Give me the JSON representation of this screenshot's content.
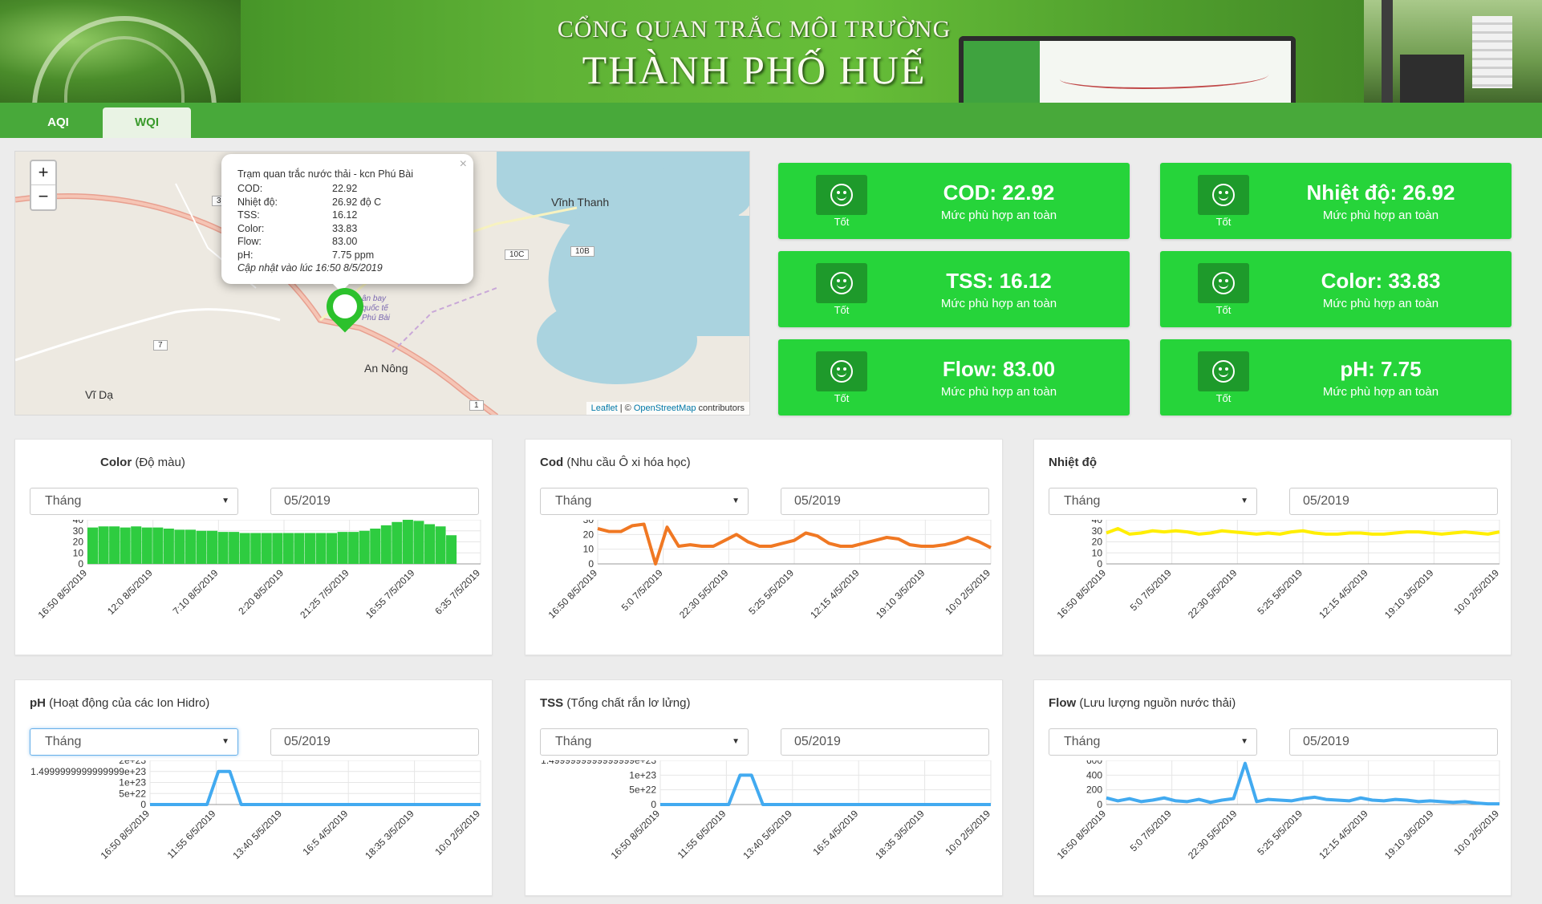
{
  "banner": {
    "title_top": "CỔNG QUAN TRẮC MÔI TRƯỜNG",
    "title_main": "THÀNH PHỐ HUẾ"
  },
  "tabs": [
    {
      "label": "AQI",
      "active": false
    },
    {
      "label": "WQI",
      "active": true
    }
  ],
  "map": {
    "zoom_in": "+",
    "zoom_out": "−",
    "labels": {
      "vinh_thanh": "Vĩnh Thanh",
      "an_nong": "An Nông",
      "vi_da": "Vĩ Dạ",
      "airport": "ân bay quốc tế Phú Bài"
    },
    "road_shields": {
      "r10c": "10C",
      "r10b": "10B",
      "r7": "7",
      "r3": "3",
      "r1": "1"
    },
    "popup": {
      "title": "Trạm quan trắc nước thải - kcn Phú Bài",
      "rows": [
        {
          "k": "COD:",
          "v": "22.92"
        },
        {
          "k": "Nhiệt độ:",
          "v": "26.92 độ C"
        },
        {
          "k": "TSS:",
          "v": "16.12"
        },
        {
          "k": "Color:",
          "v": "33.83"
        },
        {
          "k": "Flow:",
          "v": "83.00"
        },
        {
          "k": "pH:",
          "v": "7.75 ppm"
        }
      ],
      "updated": "Cập nhật vào lúc 16:50 8/5/2019",
      "close": "×"
    },
    "attribution": {
      "leaflet": "Leaflet",
      "sep": " | © ",
      "osm": "OpenStreetMap",
      "contrib": " contributors"
    }
  },
  "cards": [
    {
      "value": "COD: 22.92",
      "desc": "Mức phù hợp an toàn",
      "level": "Tốt"
    },
    {
      "value": "Nhiệt độ: 26.92",
      "desc": "Mức phù hợp an toàn",
      "level": "Tốt"
    },
    {
      "value": "TSS: 16.12",
      "desc": "Mức phù hợp an toàn",
      "level": "Tốt"
    },
    {
      "value": "Color: 33.83",
      "desc": "Mức phù hợp an toàn",
      "level": "Tốt"
    },
    {
      "value": "Flow: 83.00",
      "desc": "Mức phù hợp an toàn",
      "level": "Tốt"
    },
    {
      "value": "pH: 7.75",
      "desc": "Mức phù hợp an toàn",
      "level": "Tốt"
    }
  ],
  "colors": {
    "card_green": "#26d43a",
    "tab_green": "#48a93a",
    "color_chart": "#2ecc40",
    "cod_chart": "#f07823",
    "temp_chart": "#ffee00",
    "blue_chart": "#42aaf0"
  },
  "panels": [
    {
      "title_bold": "Color",
      "title_rest": " (Độ màu)",
      "select": "Tháng",
      "date": "05/2019"
    },
    {
      "title_bold": "Cod",
      "title_rest": " (Nhu cầu Ô xi hóa học)",
      "select": "Tháng",
      "date": "05/2019"
    },
    {
      "title_bold": "Nhiệt độ",
      "title_rest": "",
      "select": "Tháng",
      "date": "05/2019"
    },
    {
      "title_bold": "pH",
      "title_rest": " (Hoạt động của các Ion Hidro)",
      "select": "Tháng",
      "date": "05/2019"
    },
    {
      "title_bold": "TSS",
      "title_rest": " (Tổng chất rắn lơ lửng)",
      "select": "Tháng",
      "date": "05/2019"
    },
    {
      "title_bold": "Flow",
      "title_rest": " (Lưu lượng nguồn nước thải)",
      "select": "Tháng",
      "date": "05/2019"
    }
  ],
  "chart_data": [
    {
      "type": "bar",
      "name": "color",
      "color": "#2ecc40",
      "ylim": [
        0,
        40
      ],
      "yticks": [
        "0",
        "10",
        "20",
        "30",
        "40"
      ],
      "xticks": [
        "16:50 8/5/2019",
        "12:0 8/5/2019",
        "7:10 8/5/2019",
        "2:20 8/5/2019",
        "21:25 7/5/2019",
        "16:55 7/5/2019",
        "6:35 7/5/2019"
      ],
      "values": [
        33,
        34,
        34,
        33,
        34,
        33,
        33,
        32,
        31,
        31,
        30,
        30,
        29,
        29,
        28,
        28,
        28,
        28,
        28,
        28,
        28,
        28,
        28,
        29,
        29,
        30,
        32,
        35,
        38,
        40,
        39,
        36,
        34,
        26
      ]
    },
    {
      "type": "line",
      "name": "cod",
      "color": "#f07823",
      "ylim": [
        0,
        30
      ],
      "yticks": [
        "0",
        "10",
        "20",
        "30"
      ],
      "xticks": [
        "16:50 8/5/2019",
        "5:0 7/5/2019",
        "22:30 5/5/2019",
        "5:25 5/5/2019",
        "12:15 4/5/2019",
        "19:10 3/5/2019",
        "10:0 2/5/2019"
      ],
      "values": [
        24,
        22,
        22,
        26,
        27,
        0,
        25,
        12,
        13,
        12,
        12,
        16,
        20,
        15,
        12,
        12,
        14,
        16,
        21,
        19,
        14,
        12,
        12,
        14,
        16,
        18,
        17,
        13,
        12,
        12,
        13,
        15,
        18,
        15,
        11
      ]
    },
    {
      "type": "line",
      "name": "nhiet_do",
      "color": "#ffee00",
      "ylim": [
        0,
        40
      ],
      "yticks": [
        "0",
        "10",
        "20",
        "30",
        "40"
      ],
      "xticks": [
        "16:50 8/5/2019",
        "5:0 7/5/2019",
        "22:30 5/5/2019",
        "5:25 5/5/2019",
        "12:15 4/5/2019",
        "19:10 3/5/2019",
        "10:0 2/5/2019"
      ],
      "values": [
        28,
        32,
        27,
        28,
        30,
        29,
        30,
        29,
        27,
        28,
        30,
        29,
        28,
        27,
        28,
        27,
        29,
        30,
        28,
        27,
        27,
        28,
        28,
        27,
        27,
        28,
        29,
        29,
        28,
        27,
        28,
        29,
        28,
        27,
        29
      ]
    },
    {
      "type": "line",
      "name": "ph",
      "color": "#42aaf0",
      "ylim": [
        0,
        2e+23
      ],
      "yticks": [
        "0",
        "5e+22",
        "1e+23",
        "1.4999999999999999e+23",
        "2e+23"
      ],
      "xticks": [
        "16:50 8/5/2019",
        "11:55 6/5/2019",
        "13:40 5/5/2019",
        "16:5 4/5/2019",
        "18:35 3/5/2019",
        "10:0 2/5/2019"
      ],
      "values": [
        0,
        0,
        0,
        0,
        0,
        0,
        1.5e+23,
        1.5e+23,
        0,
        0,
        0,
        0,
        0,
        0,
        0,
        0,
        0,
        0,
        0,
        0,
        0,
        0,
        0,
        0,
        0,
        0,
        0,
        0,
        0,
        0
      ]
    },
    {
      "type": "line",
      "name": "tss",
      "color": "#42aaf0",
      "ylim": [
        0,
        1.5e+23
      ],
      "yticks": [
        "0",
        "5e+22",
        "1e+23",
        "1.4999999999999999e+23"
      ],
      "xticks": [
        "16:50 8/5/2019",
        "11:55 6/5/2019",
        "13:40 5/5/2019",
        "16:5 4/5/2019",
        "18:35 3/5/2019",
        "10:0 2/5/2019"
      ],
      "values": [
        0,
        0,
        0,
        0,
        0,
        0,
        0,
        1e+23,
        1e+23,
        0,
        0,
        0,
        0,
        0,
        0,
        0,
        0,
        0,
        0,
        0,
        0,
        0,
        0,
        0,
        0,
        0,
        0,
        0,
        0,
        0
      ]
    },
    {
      "type": "line",
      "name": "flow",
      "color": "#42aaf0",
      "ylim": [
        0,
        600
      ],
      "yticks": [
        "0",
        "200",
        "400",
        "600"
      ],
      "xticks": [
        "16:50 8/5/2019",
        "5:0 7/5/2019",
        "22:30 5/5/2019",
        "5:25 5/5/2019",
        "12:15 4/5/2019",
        "19:10 3/5/2019",
        "10:0 2/5/2019"
      ],
      "values": [
        90,
        50,
        80,
        40,
        60,
        90,
        50,
        40,
        70,
        30,
        60,
        80,
        560,
        40,
        70,
        60,
        50,
        80,
        100,
        70,
        60,
        50,
        90,
        60,
        50,
        70,
        60,
        40,
        50,
        40,
        30,
        40,
        20,
        10,
        10
      ]
    }
  ]
}
